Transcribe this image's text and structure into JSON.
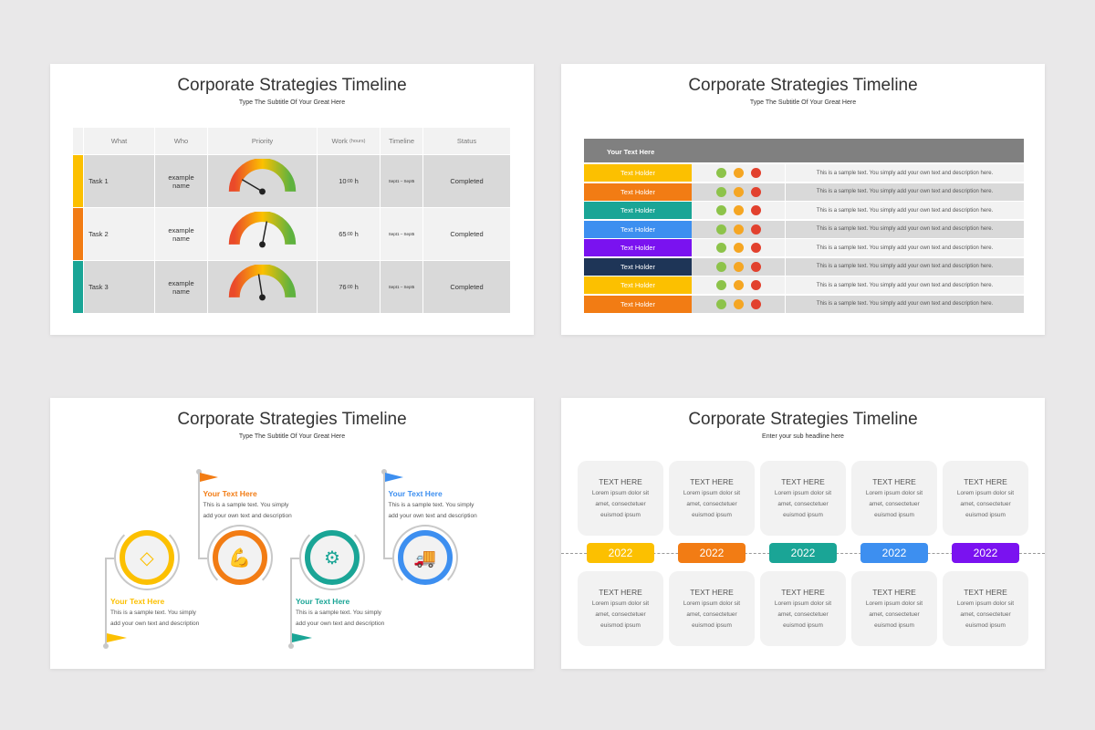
{
  "colors": {
    "yellow": "#fcc000",
    "orange": "#f27c14",
    "teal": "#1aa596",
    "blue": "#3d8ff0",
    "purple": "#7a12f0",
    "navy": "#1e3557",
    "green_dot": "#8dc34a",
    "orange_dot": "#f5a623",
    "red_dot": "#e2412e"
  },
  "slide1": {
    "title": "Corporate Strategies Timeline",
    "subtitle": "Type The Subtitle Of Your Great Here",
    "headers": {
      "what": "What",
      "who": "Who",
      "priority": "Priority",
      "work": "Work",
      "work_unit": "(hours)",
      "timeline": "Timeline",
      "status": "Status"
    },
    "rows": [
      {
        "task": "Task 1",
        "who": "example name",
        "priority": 0.17,
        "work": "10",
        "work_sup": ":00",
        "work_unit": "h",
        "timeline": "Sept1 – Sept5",
        "status": "Completed",
        "color": "#fcc000"
      },
      {
        "task": "Task 2",
        "who": "example name",
        "priority": 0.56,
        "work": "65",
        "work_sup": ":00",
        "work_unit": "h",
        "timeline": "Sept1 – Sept5",
        "status": "Completed",
        "color": "#f27c14"
      },
      {
        "task": "Task 3",
        "who": "example name",
        "priority": 0.45,
        "work": "76",
        "work_sup": ":00",
        "work_unit": "h",
        "timeline": "Sept1 – Sept5",
        "status": "Completed",
        "color": "#1aa596"
      }
    ]
  },
  "slide2": {
    "title": "Corporate Strategies Timeline",
    "subtitle": "Type The Subtitle Of Your Great Here",
    "header": "Your Text Here",
    "rows": [
      {
        "label": "Text Holder",
        "color": "#fcc000",
        "text": "This is a sample text. You simply add your own text and description here."
      },
      {
        "label": "Text Holder",
        "color": "#f27c14",
        "text": "This is a sample text. You simply add your own text and description here."
      },
      {
        "label": "Text Holder",
        "color": "#1aa596",
        "text": "This is a sample text. You simply add your own text and description here."
      },
      {
        "label": "Text Holder",
        "color": "#3d8ff0",
        "text": "This is a sample text. You simply add your own text and description here."
      },
      {
        "label": "Text Holder",
        "color": "#7a12f0",
        "text": "This is a sample text. You simply add your own text and description here."
      },
      {
        "label": "Text Holder",
        "color": "#1e3557",
        "text": "This is a sample text. You simply add your own text and description here."
      },
      {
        "label": "Text Holder",
        "color": "#fcc000",
        "text": "This is a sample text. You simply add your own text and description here."
      },
      {
        "label": "Text Holder",
        "color": "#f27c14",
        "text": "This is a sample text. You simply add your own text and description here."
      }
    ]
  },
  "slide3": {
    "title": "Corporate Strategies Timeline",
    "subtitle": "Type The Subtitle Of Your Great Here",
    "steps": [
      {
        "heading": "Your Text Here",
        "line1": "This is a sample text. You simply",
        "line2": "add your own text and description",
        "icon": "diamond-icon",
        "color": "#fcc000"
      },
      {
        "heading": "Your Text Here",
        "line1": "This is a sample text. You simply",
        "line2": "add your own text and description",
        "icon": "muscle-arm-icon",
        "color": "#f27c14"
      },
      {
        "heading": "Your Text Here",
        "line1": "This is a sample text. You simply",
        "line2": "add your own text and description",
        "icon": "lightbulb-gear-icon",
        "color": "#1aa596"
      },
      {
        "heading": "Your Text Here",
        "line1": "This is a sample text. You simply",
        "line2": "add your own text and description",
        "icon": "delivery-truck-globe-icon",
        "color": "#3d8ff0"
      }
    ]
  },
  "slide4": {
    "title": "Corporate Strategies Timeline",
    "subtitle": "Enter your sub headline here",
    "card_heading": "TEXT HERE",
    "card_line1": "Lorem ipsum dolor sit",
    "card_line2": "amet, consectetuer",
    "card_line3": "euismod ipsum",
    "years": [
      {
        "label": "2022",
        "color": "#fcc000"
      },
      {
        "label": "2022",
        "color": "#f27c14"
      },
      {
        "label": "2022",
        "color": "#1aa596"
      },
      {
        "label": "2022",
        "color": "#3d8ff0"
      },
      {
        "label": "2022",
        "color": "#7a12f0"
      }
    ]
  }
}
